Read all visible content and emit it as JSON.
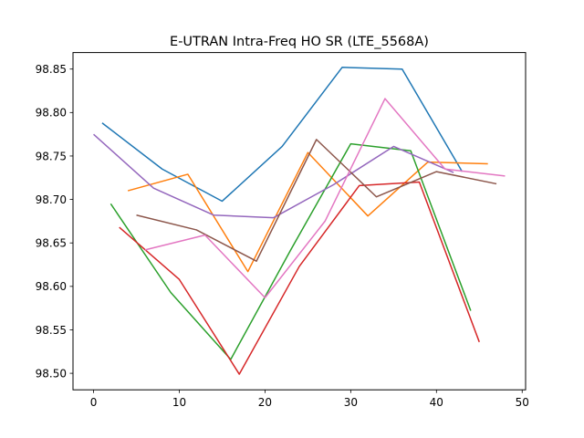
{
  "chart_data": {
    "type": "line",
    "title": "E-UTRAN Intra-Freq HO SR (LTE_5568A)",
    "xlabel": "",
    "ylabel": "",
    "xlim": [
      -2.4,
      50.4
    ],
    "ylim": [
      98.481,
      98.869
    ],
    "xticks": [
      0,
      10,
      20,
      30,
      40,
      50
    ],
    "yticks": [
      98.5,
      98.55,
      98.6,
      98.65,
      98.7,
      98.75,
      98.8,
      98.85
    ],
    "ytick_labels": [
      "98.50",
      "98.55",
      "98.60",
      "98.65",
      "98.70",
      "98.75",
      "98.80",
      "98.85"
    ],
    "grid": false,
    "legend": "none",
    "series": [
      {
        "color": "#1f77b4",
        "x": [
          1,
          8,
          15,
          22,
          29,
          36,
          43
        ],
        "y": [
          98.788,
          98.735,
          98.698,
          98.761,
          98.852,
          98.85,
          98.732
        ]
      },
      {
        "color": "#ff7f0e",
        "x": [
          4,
          11,
          18,
          25,
          32,
          39,
          46
        ],
        "y": [
          98.71,
          98.729,
          98.617,
          98.754,
          98.681,
          98.743,
          98.741
        ]
      },
      {
        "color": "#2ca02c",
        "x": [
          2,
          9,
          16,
          23,
          30,
          37,
          44
        ],
        "y": [
          98.695,
          98.593,
          98.516,
          98.642,
          98.764,
          98.756,
          98.572
        ]
      },
      {
        "color": "#d62728",
        "x": [
          3,
          10,
          17,
          24,
          31,
          38,
          45
        ],
        "y": [
          98.668,
          98.608,
          98.499,
          98.623,
          98.716,
          98.72,
          98.536
        ]
      },
      {
        "color": "#9467bd",
        "x": [
          0,
          7,
          14,
          21,
          28,
          35,
          42
        ],
        "y": [
          98.775,
          98.713,
          98.682,
          98.679,
          98.717,
          98.761,
          98.731
        ]
      },
      {
        "color": "#8c564b",
        "x": [
          5,
          12,
          19,
          26,
          33,
          40,
          47
        ],
        "y": [
          98.682,
          98.665,
          98.629,
          98.769,
          98.703,
          98.732,
          98.718
        ]
      },
      {
        "color": "#e377c2",
        "x": [
          6,
          13,
          20,
          27,
          34,
          41,
          48
        ],
        "y": [
          98.642,
          98.659,
          98.587,
          98.675,
          98.816,
          98.735,
          98.727
        ]
      }
    ]
  }
}
